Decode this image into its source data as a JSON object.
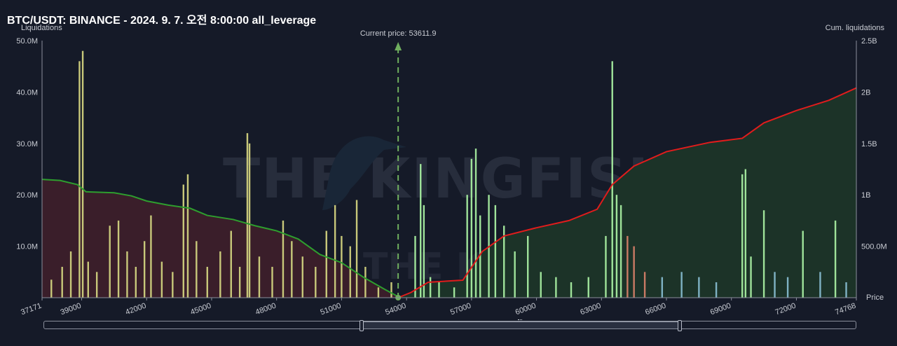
{
  "title": "BTC/USDT: BINANCE - 2024. 9. 7. 오전 8:00:00 all_leverage",
  "chart_data": {
    "type": "bar",
    "title": "BTC/USDT: BINANCE - 2024. 9. 7. 오전 8:00:00 all_leverage",
    "ylabel_left": "Liquidations",
    "ylabel_right": "Cum. liquidations",
    "xlabel": "Price",
    "left_ylim": [
      0,
      50000000
    ],
    "right_ylim": [
      0,
      2500000000
    ],
    "xlim": [
      37171,
      74768
    ],
    "left_ticks": [
      "10.0M",
      "20.0M",
      "30.0M",
      "40.0M",
      "50.0M"
    ],
    "right_ticks": [
      "500.0M",
      "1B",
      "1.5B",
      "2B",
      "2.5B"
    ],
    "x_ticks": [
      "37171",
      "39000",
      "42000",
      "45000",
      "48000",
      "51000",
      "54000",
      "57000",
      "60000",
      "63000",
      "66000",
      "69000",
      "72000",
      "74768"
    ],
    "current_price_label": "Current price: 53611.9",
    "current_price": 53611.9,
    "watermark": "THE KINGFISHER.io",
    "grid": false,
    "colors": {
      "short_bar": "#c8c87a",
      "long_bar": "#9fe39a",
      "long_bar_blue": "#7fb2c4",
      "long_bar_red": "#c97a64",
      "cum_short_line": "#2e9e2e",
      "cum_short_fill": "#3a1e2a",
      "cum_long_line": "#e11c1c",
      "cum_long_fill": "#1c3328",
      "price_line": "#6fae5e"
    },
    "cum_short_curve": [
      {
        "x": 37171,
        "y": 1150000000
      },
      {
        "x": 38000,
        "y": 1140000000
      },
      {
        "x": 38800,
        "y": 1100000000
      },
      {
        "x": 39200,
        "y": 1030000000
      },
      {
        "x": 40500,
        "y": 1020000000
      },
      {
        "x": 41300,
        "y": 990000000
      },
      {
        "x": 42000,
        "y": 940000000
      },
      {
        "x": 43000,
        "y": 900000000
      },
      {
        "x": 44000,
        "y": 870000000
      },
      {
        "x": 44800,
        "y": 800000000
      },
      {
        "x": 46000,
        "y": 760000000
      },
      {
        "x": 47000,
        "y": 700000000
      },
      {
        "x": 48000,
        "y": 650000000
      },
      {
        "x": 49000,
        "y": 570000000
      },
      {
        "x": 50000,
        "y": 420000000
      },
      {
        "x": 51000,
        "y": 340000000
      },
      {
        "x": 52000,
        "y": 200000000
      },
      {
        "x": 53000,
        "y": 80000000
      },
      {
        "x": 53611.9,
        "y": 10000000
      }
    ],
    "cum_long_curve": [
      {
        "x": 53611.9,
        "y": 0
      },
      {
        "x": 54200,
        "y": 50000000
      },
      {
        "x": 55000,
        "y": 150000000
      },
      {
        "x": 56600,
        "y": 170000000
      },
      {
        "x": 57500,
        "y": 450000000
      },
      {
        "x": 58500,
        "y": 600000000
      },
      {
        "x": 60000,
        "y": 680000000
      },
      {
        "x": 61500,
        "y": 750000000
      },
      {
        "x": 62800,
        "y": 860000000
      },
      {
        "x": 63500,
        "y": 1100000000
      },
      {
        "x": 64500,
        "y": 1280000000
      },
      {
        "x": 66000,
        "y": 1420000000
      },
      {
        "x": 68000,
        "y": 1510000000
      },
      {
        "x": 69500,
        "y": 1550000000
      },
      {
        "x": 70500,
        "y": 1700000000
      },
      {
        "x": 72000,
        "y": 1820000000
      },
      {
        "x": 73500,
        "y": 1920000000
      },
      {
        "x": 74768,
        "y": 2040000000
      }
    ],
    "bars": [
      {
        "x": 37600,
        "y": 3500000
      },
      {
        "x": 38100,
        "y": 6000000
      },
      {
        "x": 38500,
        "y": 9000000
      },
      {
        "x": 38900,
        "y": 46000000
      },
      {
        "x": 39050,
        "y": 48000000
      },
      {
        "x": 39300,
        "y": 7000000
      },
      {
        "x": 39700,
        "y": 5000000
      },
      {
        "x": 40300,
        "y": 14000000
      },
      {
        "x": 40700,
        "y": 15000000
      },
      {
        "x": 41100,
        "y": 9000000
      },
      {
        "x": 41500,
        "y": 6000000
      },
      {
        "x": 41900,
        "y": 11000000
      },
      {
        "x": 42200,
        "y": 16000000
      },
      {
        "x": 42700,
        "y": 7000000
      },
      {
        "x": 43200,
        "y": 5000000
      },
      {
        "x": 43700,
        "y": 22000000
      },
      {
        "x": 43900,
        "y": 24000000
      },
      {
        "x": 44300,
        "y": 11000000
      },
      {
        "x": 44800,
        "y": 6000000
      },
      {
        "x": 45400,
        "y": 9000000
      },
      {
        "x": 45900,
        "y": 13000000
      },
      {
        "x": 46300,
        "y": 6000000
      },
      {
        "x": 46650,
        "y": 32000000
      },
      {
        "x": 46750,
        "y": 30000000
      },
      {
        "x": 47200,
        "y": 8000000
      },
      {
        "x": 47800,
        "y": 6000000
      },
      {
        "x": 48300,
        "y": 15000000
      },
      {
        "x": 48700,
        "y": 11000000
      },
      {
        "x": 49200,
        "y": 8000000
      },
      {
        "x": 49800,
        "y": 6000000
      },
      {
        "x": 50300,
        "y": 13000000
      },
      {
        "x": 50700,
        "y": 18000000
      },
      {
        "x": 51000,
        "y": 12000000
      },
      {
        "x": 51400,
        "y": 10000000
      },
      {
        "x": 51700,
        "y": 19000000
      },
      {
        "x": 52100,
        "y": 6000000
      },
      {
        "x": 52700,
        "y": 2000000
      },
      {
        "x": 53300,
        "y": 3000000
      },
      {
        "x": 54400,
        "y": 12000000
      },
      {
        "x": 54650,
        "y": 26000000
      },
      {
        "x": 54800,
        "y": 18000000
      },
      {
        "x": 55100,
        "y": 4000000
      },
      {
        "x": 55500,
        "y": 3000000
      },
      {
        "x": 56200,
        "y": 2000000
      },
      {
        "x": 56800,
        "y": 20000000
      },
      {
        "x": 57000,
        "y": 27000000
      },
      {
        "x": 57200,
        "y": 29000000
      },
      {
        "x": 57400,
        "y": 16000000
      },
      {
        "x": 57800,
        "y": 20000000
      },
      {
        "x": 58100,
        "y": 18000000
      },
      {
        "x": 58500,
        "y": 14000000
      },
      {
        "x": 59000,
        "y": 9000000
      },
      {
        "x": 59600,
        "y": 12000000
      },
      {
        "x": 60200,
        "y": 5000000
      },
      {
        "x": 60900,
        "y": 4000000
      },
      {
        "x": 61600,
        "y": 3000000
      },
      {
        "x": 62400,
        "y": 4000000
      },
      {
        "x": 63200,
        "y": 12000000
      },
      {
        "x": 63500,
        "y": 46000000
      },
      {
        "x": 63700,
        "y": 20000000
      },
      {
        "x": 63900,
        "y": 18000000
      },
      {
        "x": 64200,
        "y": 12000000
      },
      {
        "x": 64500,
        "y": 10000000
      },
      {
        "x": 65000,
        "y": 5000000
      },
      {
        "x": 65800,
        "y": 4000000
      },
      {
        "x": 66700,
        "y": 5000000
      },
      {
        "x": 67500,
        "y": 4000000
      },
      {
        "x": 68300,
        "y": 3000000
      },
      {
        "x": 69500,
        "y": 24000000
      },
      {
        "x": 69650,
        "y": 25000000
      },
      {
        "x": 69900,
        "y": 8000000
      },
      {
        "x": 70500,
        "y": 17000000
      },
      {
        "x": 71000,
        "y": 5000000
      },
      {
        "x": 71600,
        "y": 4000000
      },
      {
        "x": 72300,
        "y": 13000000
      },
      {
        "x": 73100,
        "y": 5000000
      },
      {
        "x": 73800,
        "y": 15000000
      },
      {
        "x": 74300,
        "y": 3000000
      }
    ]
  }
}
